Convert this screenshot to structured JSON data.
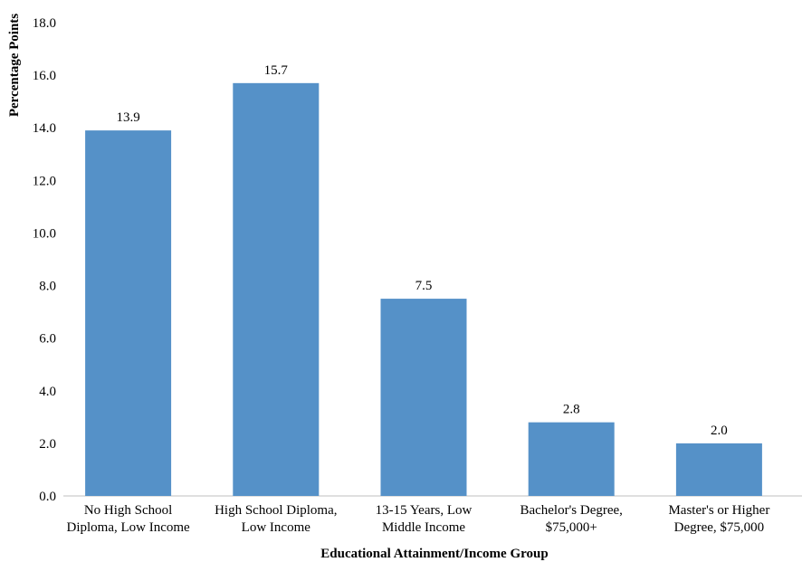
{
  "chart_data": {
    "type": "bar",
    "title": "",
    "xlabel": "Educational Attainment/Income Group",
    "ylabel": "Percentage Points",
    "categories": [
      [
        "No High School",
        "Diploma, Low Income"
      ],
      [
        "High School Diploma,",
        "Low Income"
      ],
      [
        "13-15 Years, Low",
        "Middle Income"
      ],
      [
        "Bachelor's Degree,",
        "$75,000+"
      ],
      [
        "Master's or Higher",
        "Degree, $75,000"
      ]
    ],
    "values": [
      13.9,
      15.7,
      7.5,
      2.8,
      2.0
    ],
    "data_labels": [
      "13.9",
      "15.7",
      "7.5",
      "2.8",
      "2.0"
    ],
    "yticks": [
      "0.0",
      "2.0",
      "4.0",
      "6.0",
      "8.0",
      "10.0",
      "12.0",
      "14.0",
      "16.0",
      "18.0"
    ],
    "ylim": [
      0,
      18
    ],
    "grid": false,
    "legend": "none",
    "bar_color": "#5591C8"
  }
}
